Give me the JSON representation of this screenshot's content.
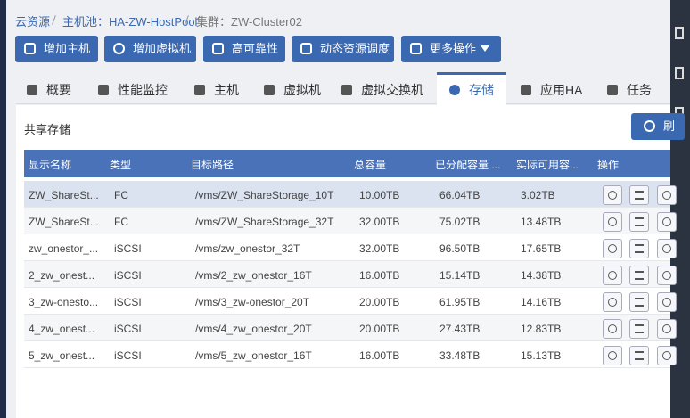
{
  "breadcrumb": [
    "云资源",
    "主机池：HA-ZW-HostPool",
    "集群：ZW-Cluster02"
  ],
  "toolbar": [
    "增加主机",
    "增加虚拟机",
    "高可靠性",
    "动态资源调度",
    "更多操作"
  ],
  "tabs": [
    "概要",
    "性能监控",
    "主机",
    "虚拟机",
    "虚拟交换机",
    "存储",
    "应用HA",
    "任务"
  ],
  "panel": {
    "title": "共享存储",
    "refresh": "刷"
  },
  "table": {
    "headers": [
      "显示名称",
      "类型",
      "目标路径",
      "总容量",
      "已分配容量 ...",
      "实际可用容...",
      "操作"
    ],
    "rows": [
      [
        "ZW_ShareSt...",
        "FC",
        "/vms/ZW_ShareStorage_10T",
        "10.00TB",
        "66.04TB",
        "3.02TB"
      ],
      [
        "ZW_ShareSt...",
        "FC",
        "/vms/ZW_ShareStorage_32T",
        "32.00TB",
        "75.02TB",
        "13.48TB"
      ],
      [
        "zw_onestor_...",
        "iSCSI",
        "/vms/zw_onestor_32T",
        "32.00TB",
        "96.50TB",
        "17.65TB"
      ],
      [
        "2_zw_onest...",
        "iSCSI",
        "/vms/2_zw_onestor_16T",
        "16.00TB",
        "15.14TB",
        "14.38TB"
      ],
      [
        "3_zw-onesto...",
        "iSCSI",
        "/vms/3_zw-onestor_20T",
        "20.00TB",
        "61.95TB",
        "14.16TB"
      ],
      [
        "4_zw_onest...",
        "iSCSI",
        "/vms/4_zw_onestor_20T",
        "20.00TB",
        "27.43TB",
        "12.83TB"
      ],
      [
        "5_zw_onest...",
        "iSCSI",
        "/vms/5_zw_onestor_16T",
        "16.00TB",
        "33.48TB",
        "15.13TB"
      ]
    ]
  }
}
